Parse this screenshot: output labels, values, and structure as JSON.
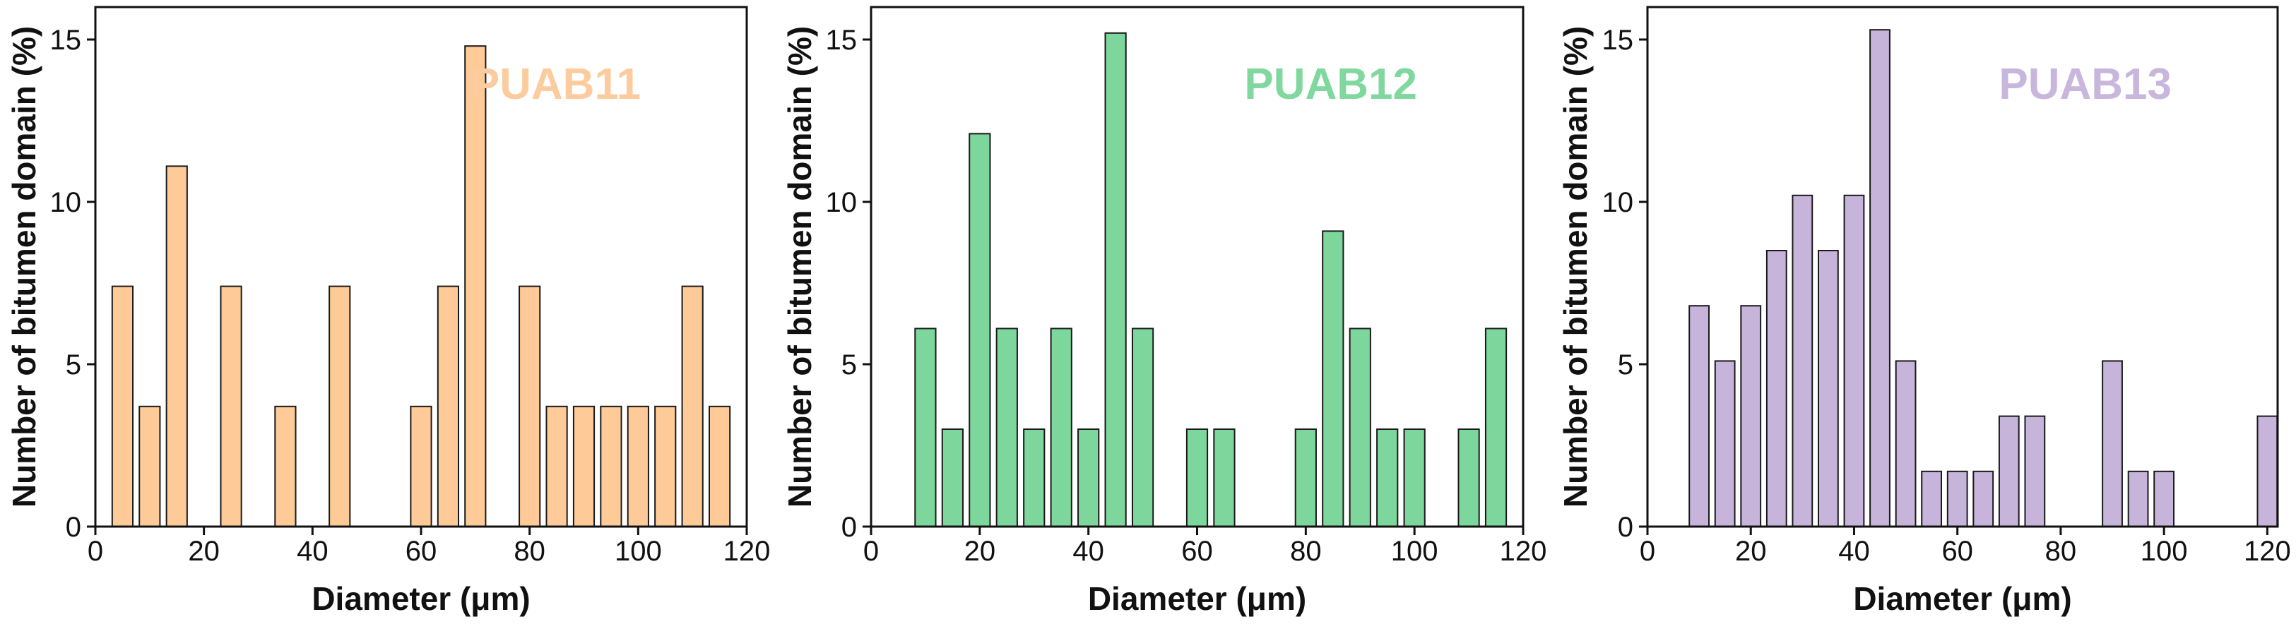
{
  "chart_data": [
    {
      "type": "bar",
      "annotation": "PUAB11",
      "color": "#fdca98",
      "annotation_color": "#fccb9e",
      "xlabel": "Diameter (μm)",
      "ylabel": "Number of bitumen domain (%)",
      "x": [
        5,
        10,
        15,
        25,
        35,
        45,
        60,
        65,
        70,
        80,
        85,
        90,
        95,
        100,
        105,
        110,
        115
      ],
      "values": [
        7.4,
        3.7,
        11.1,
        7.4,
        3.7,
        7.4,
        3.7,
        7.4,
        14.8,
        7.4,
        3.7,
        3.7,
        3.7,
        3.7,
        3.7,
        7.4,
        3.7
      ],
      "xlim": [
        0,
        120
      ],
      "ylim": [
        0,
        16
      ],
      "xticks": [
        0,
        20,
        40,
        60,
        80,
        100,
        120
      ],
      "yticks": [
        0,
        5,
        10,
        15
      ]
    },
    {
      "type": "bar",
      "annotation": "PUAB12",
      "color": "#7dd69b",
      "annotation_color": "#80d89e",
      "xlabel": "Diameter (μm)",
      "ylabel": "Number of bitumen domain (%)",
      "x": [
        10,
        15,
        20,
        25,
        30,
        35,
        40,
        45,
        50,
        60,
        65,
        80,
        85,
        90,
        95,
        100,
        110,
        115
      ],
      "values": [
        6.1,
        3,
        12.1,
        6.1,
        3,
        6.1,
        3,
        15.2,
        6.1,
        3,
        3,
        3,
        9.1,
        6.1,
        3,
        3,
        3,
        6.1
      ],
      "xlim": [
        0,
        120
      ],
      "ylim": [
        0,
        16
      ],
      "xticks": [
        0,
        20,
        40,
        60,
        80,
        100,
        120
      ],
      "yticks": [
        0,
        5,
        10,
        15
      ]
    },
    {
      "type": "bar",
      "annotation": "PUAB13",
      "color": "#c6b4da",
      "annotation_color": "#c8b6dc",
      "xlabel": "Diameter (μm)",
      "ylabel": "Number of bitumen domain (%)",
      "x": [
        10,
        15,
        20,
        25,
        30,
        35,
        40,
        45,
        50,
        55,
        60,
        65,
        70,
        75,
        90,
        95,
        100,
        120
      ],
      "values": [
        6.8,
        5.1,
        6.8,
        8.5,
        10.2,
        8.5,
        10.2,
        15.3,
        5.1,
        1.7,
        1.7,
        1.7,
        3.4,
        3.4,
        5.1,
        1.7,
        1.7,
        3.4
      ],
      "xlim": [
        0,
        122
      ],
      "ylim": [
        0,
        16
      ],
      "xticks": [
        0,
        20,
        40,
        60,
        80,
        100,
        120
      ],
      "yticks": [
        0,
        5,
        10,
        15
      ]
    }
  ]
}
